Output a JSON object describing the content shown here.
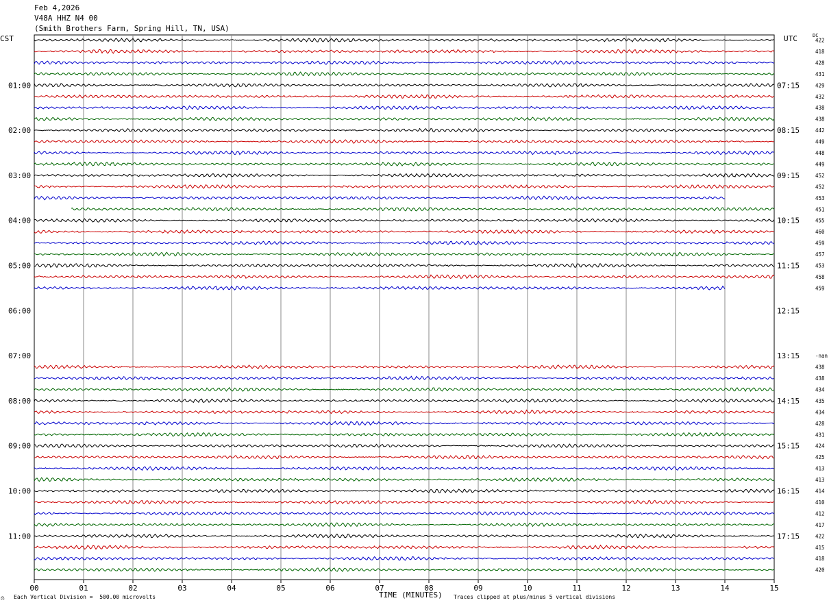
{
  "header": {
    "date": "Feb 4,2026",
    "station": "V48A HHZ N4 00",
    "location": "(Smith Brothers Farm, Spring Hill, TN, USA)"
  },
  "left_axis_label": "CST",
  "right_axis_label": "UTC",
  "dc_label": "DC",
  "colors": {
    "black": "#000000",
    "red": "#cc0000",
    "blue": "#0000cc",
    "green": "#006600",
    "grid": "#888888"
  },
  "footer": {
    "scale_note": "Each Vertical Division =  500.00 microvolts",
    "clip_note": "Traces clipped at plus/minus 5 vertical divisions",
    "logo_mark": "⚖"
  },
  "chart_data": {
    "type": "helicorder",
    "xlabel": "TIME (MINUTES)",
    "x_ticks": [
      "00",
      "01",
      "02",
      "03",
      "04",
      "05",
      "06",
      "07",
      "08",
      "09",
      "10",
      "11",
      "12",
      "13",
      "14",
      "15"
    ],
    "xlim": [
      0,
      15
    ],
    "left_hour_labels": [
      "01:00",
      "02:00",
      "03:00",
      "04:00",
      "05:00",
      "06:00",
      "07:00",
      "08:00",
      "09:00",
      "10:00",
      "11:00"
    ],
    "right_hour_labels": [
      "07:15",
      "08:15",
      "09:15",
      "10:15",
      "11:15",
      "12:15",
      "13:15",
      "14:15",
      "15:15",
      "16:15",
      "17:15"
    ],
    "traces": [
      {
        "dc": "422",
        "color": "black",
        "start": 0,
        "end": 15
      },
      {
        "dc": "418",
        "color": "red",
        "start": 0,
        "end": 15
      },
      {
        "dc": "428",
        "color": "blue",
        "start": 0,
        "end": 15
      },
      {
        "dc": "431",
        "color": "green",
        "start": 0,
        "end": 15
      },
      {
        "dc": "429",
        "color": "black",
        "start": 0,
        "end": 15
      },
      {
        "dc": "432",
        "color": "red",
        "start": 0,
        "end": 15
      },
      {
        "dc": "438",
        "color": "blue",
        "start": 0,
        "end": 15
      },
      {
        "dc": "438",
        "color": "green",
        "start": 0,
        "end": 15
      },
      {
        "dc": "442",
        "color": "black",
        "start": 0,
        "end": 15
      },
      {
        "dc": "449",
        "color": "red",
        "start": 0,
        "end": 15
      },
      {
        "dc": "448",
        "color": "blue",
        "start": 0,
        "end": 15
      },
      {
        "dc": "449",
        "color": "green",
        "start": 0,
        "end": 15
      },
      {
        "dc": "452",
        "color": "black",
        "start": 0,
        "end": 15
      },
      {
        "dc": "452",
        "color": "red",
        "start": 0,
        "end": 15
      },
      {
        "dc": "453",
        "color": "blue",
        "start": 0,
        "end": 14
      },
      {
        "dc": "451",
        "color": "green",
        "start": 0.75,
        "end": 15
      },
      {
        "dc": "455",
        "color": "black",
        "start": 0,
        "end": 15
      },
      {
        "dc": "460",
        "color": "red",
        "start": 0,
        "end": 15
      },
      {
        "dc": "459",
        "color": "blue",
        "start": 0,
        "end": 15
      },
      {
        "dc": "457",
        "color": "green",
        "start": 0,
        "end": 15
      },
      {
        "dc": "453",
        "color": "black",
        "start": 0,
        "end": 15
      },
      {
        "dc": "458",
        "color": "red",
        "start": 0,
        "end": 15
      },
      {
        "dc": "459",
        "color": "blue",
        "start": 0,
        "end": 14
      },
      {
        "dc": "",
        "color": "green",
        "start": null,
        "end": null
      },
      {
        "dc": "",
        "color": "black",
        "start": null,
        "end": null
      },
      {
        "dc": "",
        "color": "red",
        "start": null,
        "end": null
      },
      {
        "dc": "",
        "color": "blue",
        "start": null,
        "end": null
      },
      {
        "dc": "",
        "color": "green",
        "start": null,
        "end": null
      },
      {
        "dc": "-nan",
        "color": "black",
        "start": null,
        "end": null
      },
      {
        "dc": "438",
        "color": "red",
        "start": 0,
        "end": 15
      },
      {
        "dc": "438",
        "color": "blue",
        "start": 0,
        "end": 15
      },
      {
        "dc": "434",
        "color": "green",
        "start": 0,
        "end": 15
      },
      {
        "dc": "435",
        "color": "black",
        "start": 0,
        "end": 15
      },
      {
        "dc": "434",
        "color": "red",
        "start": 0,
        "end": 15
      },
      {
        "dc": "428",
        "color": "blue",
        "start": 0,
        "end": 15
      },
      {
        "dc": "431",
        "color": "green",
        "start": 0,
        "end": 15
      },
      {
        "dc": "424",
        "color": "black",
        "start": 0,
        "end": 15
      },
      {
        "dc": "425",
        "color": "red",
        "start": 0,
        "end": 15
      },
      {
        "dc": "413",
        "color": "blue",
        "start": 0,
        "end": 15
      },
      {
        "dc": "413",
        "color": "green",
        "start": 0,
        "end": 15
      },
      {
        "dc": "414",
        "color": "black",
        "start": 0,
        "end": 15
      },
      {
        "dc": "410",
        "color": "red",
        "start": 0,
        "end": 15
      },
      {
        "dc": "412",
        "color": "blue",
        "start": 0,
        "end": 15
      },
      {
        "dc": "417",
        "color": "green",
        "start": 0,
        "end": 15
      },
      {
        "dc": "422",
        "color": "black",
        "start": 0,
        "end": 15
      },
      {
        "dc": "415",
        "color": "red",
        "start": 0,
        "end": 15
      },
      {
        "dc": "418",
        "color": "blue",
        "start": 0,
        "end": 15
      },
      {
        "dc": "420",
        "color": "green",
        "start": 0,
        "end": 15
      }
    ]
  }
}
